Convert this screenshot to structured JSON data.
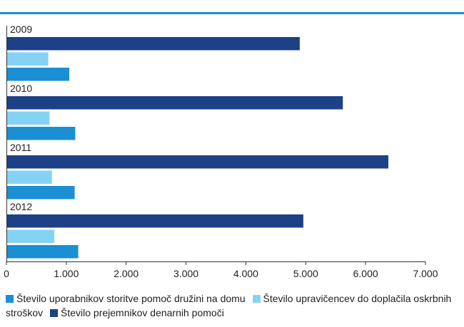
{
  "colors": {
    "header_rule": "#1a8fd4",
    "axis": "#333333",
    "text": "#1f1f1f"
  },
  "chart_data": {
    "type": "bar",
    "orientation": "horizontal",
    "title": "",
    "xlabel": "",
    "ylabel": "",
    "xlim": [
      0,
      7000
    ],
    "x_ticks": [
      0,
      1000,
      2000,
      3000,
      4000,
      5000,
      6000,
      7000
    ],
    "x_tick_labels": [
      "0",
      "1.000",
      "2.000",
      "3.000",
      "4.000",
      "5.000",
      "6.000",
      "7.000"
    ],
    "grid": false,
    "legend_position": "bottom",
    "categories": [
      "2009",
      "2010",
      "2011",
      "2012"
    ],
    "series": [
      {
        "name": "Število prejemnikov denarnih pomoči",
        "color": "#1c4187",
        "values": [
          4900,
          5620,
          6380,
          4960
        ]
      },
      {
        "name": "Število upravičencev do doplačila oskrbnih stroškov",
        "color": "#85d3f4",
        "values": [
          700,
          720,
          760,
          800
        ]
      },
      {
        "name": "Število uporabnikov storitve pomoč družini na domu",
        "color": "#1a8fd4",
        "values": [
          1050,
          1150,
          1140,
          1200
        ]
      }
    ],
    "legend_order": [
      2,
      1,
      0
    ]
  }
}
